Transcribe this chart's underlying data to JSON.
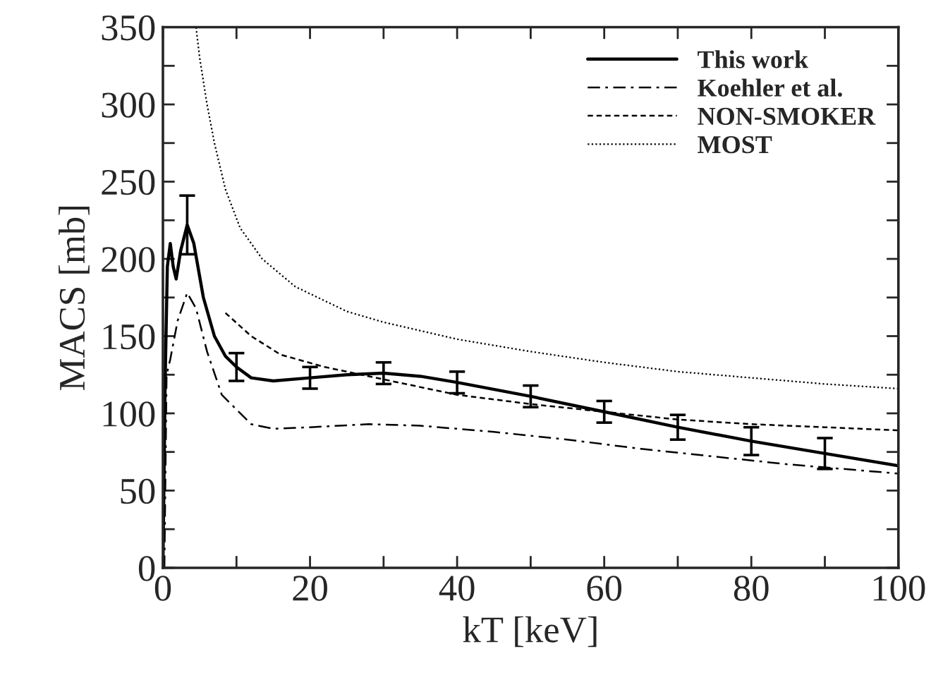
{
  "chart_data": {
    "type": "line",
    "xlabel": "kT [keV]",
    "ylabel": "MACS [mb]",
    "xlim": [
      0,
      100
    ],
    "ylim": [
      0,
      350
    ],
    "xticks": [
      0,
      {
        "value": 10,
        "label": null
      },
      20,
      {
        "value": 30,
        "label": null
      },
      40,
      {
        "value": 50,
        "label": null
      },
      60,
      {
        "value": 70,
        "label": null
      },
      80,
      {
        "value": 90,
        "label": null
      },
      100
    ],
    "yticks": [
      0,
      {
        "value": 25,
        "label": null
      },
      50,
      {
        "value": 75,
        "label": null
      },
      100,
      {
        "value": 125,
        "label": null
      },
      150,
      {
        "value": 175,
        "label": null
      },
      200,
      {
        "value": 225,
        "label": null
      },
      250,
      {
        "value": 275,
        "label": null
      },
      300,
      {
        "value": 325,
        "label": null
      },
      350
    ],
    "grid": false,
    "legend": "top right",
    "series": [
      {
        "name": "This work",
        "color": "#000000",
        "line_style": "solid",
        "x": [
          0,
          0.3,
          0.6,
          1,
          1.4,
          1.8,
          2.4,
          3.3,
          4.2,
          5.5,
          7,
          8.5,
          10,
          12,
          15,
          20,
          25,
          30,
          35,
          40,
          50,
          60,
          70,
          80,
          90,
          100
        ],
        "values": [
          0,
          120,
          195,
          210,
          195,
          187,
          205,
          222,
          210,
          175,
          150,
          137,
          130,
          123,
          121,
          123,
          125,
          126,
          124,
          120,
          111,
          101,
          91,
          82,
          74,
          66
        ],
        "errors": [
          null,
          null,
          null,
          null,
          null,
          null,
          null,
          19,
          null,
          null,
          null,
          null,
          9,
          null,
          null,
          7,
          null,
          7,
          null,
          7,
          7,
          7,
          8,
          9,
          10,
          null
        ]
      },
      {
        "name": "Koehler et al.",
        "color": "#000000",
        "line_style": "dashdot",
        "x": [
          0.2,
          0.5,
          1,
          2,
          3.3,
          4.5,
          6,
          8,
          12,
          15,
          20,
          28,
          35,
          45,
          55,
          65,
          75,
          85,
          95,
          100
        ],
        "values": [
          0,
          125,
          135,
          160,
          178,
          168,
          140,
          112,
          93,
          90,
          91,
          93,
          92,
          88,
          83,
          77,
          72,
          67,
          63,
          61
        ]
      },
      {
        "name": "NON-SMOKER",
        "color": "#000000",
        "line_style": "dashed",
        "x": [
          8.5,
          12,
          16,
          22,
          30,
          40,
          50,
          60,
          70,
          80,
          90,
          100
        ],
        "values": [
          165,
          150,
          138,
          130,
          122,
          112,
          106,
          101,
          96,
          93,
          91,
          89
        ]
      },
      {
        "name": "MOST",
        "color": "#000000",
        "line_style": "dotted",
        "x": [
          4.5,
          5,
          6,
          7,
          8.5,
          10.5,
          13.5,
          18,
          25,
          30,
          40,
          50,
          60,
          70,
          80,
          90,
          100
        ],
        "values": [
          350,
          330,
          300,
          275,
          245,
          220,
          200,
          182,
          166,
          159,
          148,
          140,
          133,
          127,
          123,
          119,
          116
        ]
      }
    ]
  }
}
